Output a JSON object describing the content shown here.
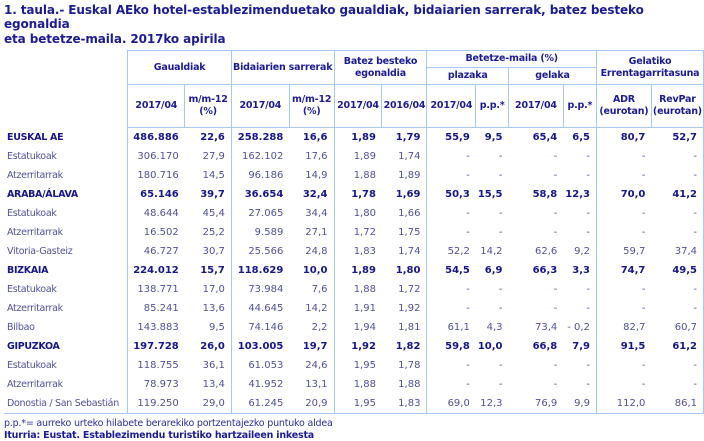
{
  "title": {
    "line1": "1. taula.- Euskal AEko hotel-establezimenduetako gaualdiak, bidaiarien sarrerak, batez besteko egonaldia",
    "line2": "eta betetze-maila. 2017ko apirila"
  },
  "table": {
    "groups": [
      "Gaualdiak",
      "Bidaiarien sarrerak",
      "Batez besteko egonaldia",
      "Betetze-maila (%)",
      "Gelatiko Errentagarritasuna"
    ],
    "subheaders": [
      "plazaka",
      "gelaka"
    ],
    "col_headers": [
      "2017/04",
      "m/m-12 (%)",
      "2017/04",
      "m/m-12 (%)",
      "2017/04",
      "2016/04",
      "2017/04",
      "p.p.*",
      "2017/04",
      "p.p.*",
      "ADR (eurotan)",
      "RevPar (eurotan)"
    ],
    "rows": [
      {
        "label": "EUSKAL AE",
        "bold": true,
        "values": [
          "486.886",
          "22,6",
          "258.288",
          "16,6",
          "1,89",
          "1,79",
          "55,9",
          "9,5",
          "65,4",
          "6,5",
          "80,7",
          "52,7"
        ]
      },
      {
        "label": "Estatukoak",
        "bold": false,
        "values": [
          "306.170",
          "27,9",
          "162.102",
          "17,6",
          "1,89",
          "1,74",
          "-",
          "-",
          "-",
          "-",
          "-",
          "-"
        ]
      },
      {
        "label": "Atzerritarrak",
        "bold": false,
        "values": [
          "180.716",
          "14,5",
          "96.186",
          "14,9",
          "1,88",
          "1,89",
          "-",
          "-",
          "-",
          "-",
          "-",
          "-"
        ]
      },
      {
        "label": "ARABA/ÁLAVA",
        "bold": true,
        "values": [
          "65.146",
          "39,7",
          "36.654",
          "32,4",
          "1,78",
          "1,69",
          "50,3",
          "15,5",
          "58,8",
          "12,3",
          "70,0",
          "41,2"
        ]
      },
      {
        "label": "Estatukoak",
        "bold": false,
        "values": [
          "48.644",
          "45,4",
          "27.065",
          "34,4",
          "1,80",
          "1,66",
          "-",
          "-",
          "-",
          "-",
          "-",
          "-"
        ]
      },
      {
        "label": "Atzerritarrak",
        "bold": false,
        "values": [
          "16.502",
          "25,2",
          "9.589",
          "27,1",
          "1,72",
          "1,75",
          "-",
          "-",
          "-",
          "-",
          "-",
          "-"
        ]
      },
      {
        "label": "Vitoria-Gasteiz",
        "bold": false,
        "values": [
          "46.727",
          "30,7",
          "25.566",
          "24,8",
          "1,83",
          "1,74",
          "52,2",
          "14,2",
          "62,6",
          "9,2",
          "59,7",
          "37,4"
        ]
      },
      {
        "label": "BIZKAIA",
        "bold": true,
        "values": [
          "224.012",
          "15,7",
          "118.629",
          "10,0",
          "1,89",
          "1,80",
          "54,5",
          "6,9",
          "66,3",
          "3,3",
          "74,7",
          "49,5"
        ]
      },
      {
        "label": "Estatukoak",
        "bold": false,
        "values": [
          "138.771",
          "17,0",
          "73.984",
          "7,6",
          "1,88",
          "1,72",
          "-",
          "-",
          "-",
          "-",
          "-",
          "-"
        ]
      },
      {
        "label": "Atzerritarrak",
        "bold": false,
        "values": [
          "85.241",
          "13,6",
          "44.645",
          "14,2",
          "1,91",
          "1,92",
          "-",
          "-",
          "-",
          "-",
          "-",
          "-"
        ]
      },
      {
        "label": "Bilbao",
        "bold": false,
        "values": [
          "143.883",
          "9,5",
          "74.146",
          "2,2",
          "1,94",
          "1,81",
          "61,1",
          "4,3",
          "73,4",
          "- 0,2",
          "82,7",
          "60,7"
        ]
      },
      {
        "label": "GIPUZKOA",
        "bold": true,
        "values": [
          "197.728",
          "26,0",
          "103.005",
          "19,7",
          "1,92",
          "1,82",
          "59,8",
          "10,0",
          "66,8",
          "7,9",
          "91,5",
          "61,2"
        ]
      },
      {
        "label": "Estatukoak",
        "bold": false,
        "values": [
          "118.755",
          "36,1",
          "61.053",
          "24,6",
          "1,95",
          "1,78",
          "-",
          "-",
          "-",
          "-",
          "-",
          "-"
        ]
      },
      {
        "label": "Atzerritarrak",
        "bold": false,
        "values": [
          "78.973",
          "13,4",
          "41.952",
          "13,1",
          "1,88",
          "1,88",
          "-",
          "-",
          "-",
          "-",
          "-",
          "-"
        ]
      },
      {
        "label": "Donostia / San Sebastián",
        "bold": false,
        "values": [
          "119.250",
          "29,0",
          "61.245",
          "20,9",
          "1,95",
          "1,83",
          "69,0",
          "12,3",
          "76,9",
          "9,9",
          "112,0",
          "86,1"
        ]
      }
    ]
  },
  "footnote": "p.p.*= aurreko urteko hilabete berarekiko portzentajezko puntuko aldea",
  "source": "Iturria: Eustat. Establezimendu turistiko hartzaileen inkesta",
  "colors": {
    "navy_text": "#1b1b96",
    "bold_row_text": "#15158c",
    "subrow_text": "#50509b",
    "border_blue": "#a5c9f0"
  }
}
